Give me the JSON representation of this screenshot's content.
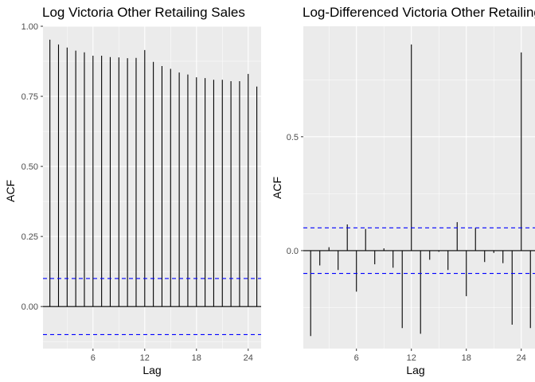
{
  "chart_data": [
    {
      "type": "bar",
      "title": "Log Victoria Other Retailing Sales",
      "xlabel": "Lag",
      "ylabel": "ACF",
      "x": [
        1,
        2,
        3,
        4,
        5,
        6,
        7,
        8,
        9,
        10,
        11,
        12,
        13,
        14,
        15,
        16,
        17,
        18,
        19,
        20,
        21,
        22,
        23,
        24,
        25
      ],
      "values": [
        0.952,
        0.935,
        0.924,
        0.913,
        0.907,
        0.895,
        0.895,
        0.89,
        0.889,
        0.886,
        0.887,
        0.915,
        0.873,
        0.858,
        0.848,
        0.835,
        0.828,
        0.818,
        0.815,
        0.809,
        0.809,
        0.804,
        0.804,
        0.83,
        0.785
      ],
      "confidence_bounds": [
        0.1,
        -0.1
      ],
      "xlim": [
        0.2,
        25.5
      ],
      "ylim": [
        -0.15,
        1.0
      ],
      "x_ticks": [
        6,
        12,
        18,
        24
      ],
      "y_ticks": [
        0.0,
        0.25,
        0.5,
        0.75,
        1.0
      ],
      "y_tick_labels": [
        "0.00",
        "0.25",
        "0.50",
        "0.75",
        "1.00"
      ],
      "grid": true
    },
    {
      "type": "bar",
      "title": "Log-Differenced Victoria Other Retailing S",
      "xlabel": "Lag",
      "ylabel": "ACF",
      "x": [
        1,
        2,
        3,
        4,
        5,
        6,
        7,
        8,
        9,
        10,
        11,
        12,
        13,
        14,
        15,
        16,
        17,
        18,
        19,
        20,
        21,
        22,
        23,
        24,
        25
      ],
      "values": [
        -0.375,
        -0.065,
        0.015,
        -0.085,
        0.115,
        -0.18,
        0.095,
        -0.06,
        0.01,
        -0.075,
        -0.34,
        0.905,
        -0.365,
        -0.04,
        -0.005,
        -0.085,
        0.125,
        -0.2,
        0.1,
        -0.05,
        -0.01,
        -0.055,
        -0.325,
        0.87,
        -0.34
      ],
      "confidence_bounds": [
        0.1,
        -0.1
      ],
      "xlim": [
        0.2,
        25.5
      ],
      "ylim": [
        -0.43,
        0.985
      ],
      "x_ticks": [
        6,
        12,
        18,
        24
      ],
      "y_ticks": [
        0.0,
        0.5
      ],
      "y_tick_labels": [
        "0.0",
        "0.5"
      ],
      "grid": true
    }
  ],
  "colors": {
    "panel_background": "#ebebeb",
    "grid": "#ffffff",
    "bars": "#000000",
    "confidence_lines": "#0000ff"
  }
}
